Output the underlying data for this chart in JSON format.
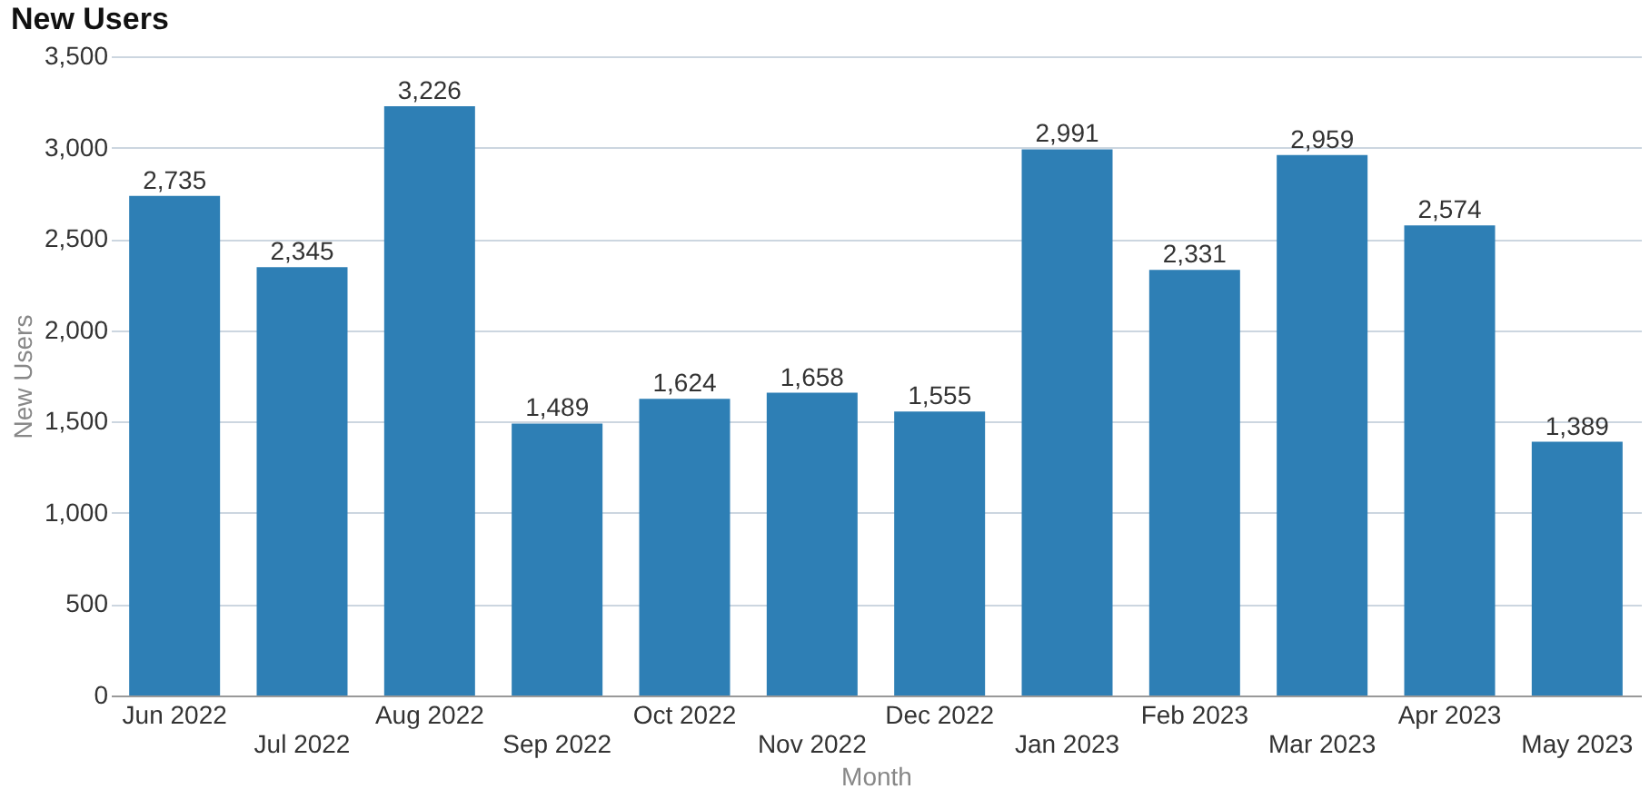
{
  "chart_data": {
    "type": "bar",
    "title": "New Users",
    "xlabel": "Month",
    "ylabel": "New Users",
    "categories": [
      "Jun 2022",
      "Jul 2022",
      "Aug 2022",
      "Sep 2022",
      "Oct 2022",
      "Nov 2022",
      "Dec 2022",
      "Jan 2023",
      "Feb 2023",
      "Mar 2023",
      "Apr 2023",
      "May 2023"
    ],
    "values": [
      2735,
      2345,
      3226,
      1489,
      1624,
      1658,
      1555,
      2991,
      2331,
      2959,
      2574,
      1389
    ],
    "value_labels": [
      "2,735",
      "2,345",
      "3,226",
      "1,489",
      "1,624",
      "1,658",
      "1,555",
      "2,991",
      "2,331",
      "2,959",
      "2,574",
      "1,389"
    ],
    "color": "#2e7fb5",
    "ylim": [
      0,
      3500
    ],
    "yticks": [
      0,
      {
        "value": 500,
        "label": "500"
      },
      {
        "value": 1000,
        "label": "1,000"
      },
      {
        "value": 1500,
        "label": "1,500"
      },
      {
        "value": 2000,
        "label": "2,000"
      },
      {
        "value": 2500,
        "label": "2,500"
      },
      {
        "value": 3000,
        "label": "3,000"
      },
      {
        "value": 3500,
        "label": "3,500"
      }
    ],
    "grid": "y"
  }
}
